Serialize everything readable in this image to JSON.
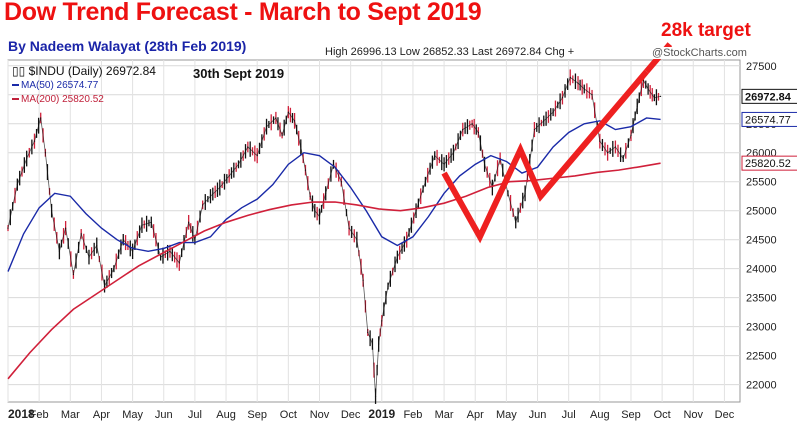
{
  "overlay": {
    "headline": "Dow Trend Forecast - March to Sept 2019",
    "byline": "By Nadeem Walayat  (28th Feb 2019)",
    "target_label": "28k target",
    "date_label": "30th Sept 2019",
    "stats_text": "High 26996.13  Low 26852.33  Last 26972.84  Chg +",
    "watermark": "@StockCharts.com"
  },
  "legend": {
    "symbol": "$INDU (Daily) 26972.84",
    "ma50": "MA(50) 26574.77",
    "ma200": "MA(200) 25820.52"
  },
  "colors": {
    "up_bar": "#111111",
    "down_bar": "#d0203a",
    "ma50": "#1a2aa8",
    "ma200": "#d0203a",
    "forecast": "#ee2020",
    "headline": "#ee1111",
    "byline": "#1a24a8"
  },
  "chart_data": {
    "type": "line",
    "title": "$INDU (Daily)",
    "ylabel": "",
    "xlabel": "",
    "ylim": [
      21700,
      27600
    ],
    "y_ticks": [
      22000,
      22500,
      23000,
      23500,
      24000,
      24500,
      25000,
      25500,
      26000,
      26500,
      27000,
      27500
    ],
    "x_ticks": [
      "2018",
      "Feb",
      "Mar",
      "Apr",
      "May",
      "Jun",
      "Jul",
      "Aug",
      "Sep",
      "Oct",
      "Nov",
      "Dec",
      "2019",
      "Feb",
      "Mar",
      "Apr",
      "May",
      "Jun",
      "Jul",
      "Aug",
      "Sep",
      "Oct",
      "Nov",
      "Dec"
    ],
    "price_badges": [
      {
        "label": "26972.84",
        "value": 26972.84,
        "series": "price"
      },
      {
        "label": "26574.77",
        "value": 26574.77,
        "series": "ma50"
      },
      {
        "label": "25820.52",
        "value": 25820.52,
        "series": "ma200"
      }
    ],
    "series": [
      {
        "name": "$INDU",
        "style": "price",
        "x": [
          0,
          0.3,
          0.6,
          0.85,
          1.05,
          1.2,
          1.4,
          1.65,
          1.85,
          2.1,
          2.35,
          2.6,
          2.85,
          3.1,
          3.4,
          3.7,
          4.0,
          4.3,
          4.6,
          4.9,
          5.2,
          5.5,
          5.8,
          6.0,
          6.25,
          6.5,
          6.8,
          7.1,
          7.4,
          7.7,
          8.0,
          8.3,
          8.6,
          8.8,
          9.0,
          9.2,
          9.4,
          9.55,
          9.7,
          9.85,
          10.0,
          10.2,
          10.45,
          10.7,
          10.95,
          11.2,
          11.4,
          11.55,
          11.7,
          11.8,
          11.9,
          12.0,
          12.2,
          12.5,
          12.8,
          13.1,
          13.4,
          13.7,
          14.0,
          14.3,
          14.6,
          14.9,
          15.1,
          15.3,
          15.55,
          15.8,
          16.05,
          16.3,
          16.6,
          16.9,
          17.2,
          17.5,
          17.8,
          18.05,
          18.3,
          18.5,
          18.75,
          19.0,
          19.25,
          19.5,
          19.75,
          20.0,
          20.2,
          20.4,
          20.55,
          20.75,
          20.95
        ],
        "values": [
          24700,
          25450,
          25900,
          26200,
          26600,
          26000,
          25000,
          24300,
          24700,
          23900,
          24600,
          24200,
          24400,
          23700,
          24000,
          24500,
          24300,
          24750,
          24800,
          24200,
          24300,
          24100,
          24800,
          24500,
          25100,
          25250,
          25400,
          25600,
          25800,
          26100,
          25950,
          26450,
          26600,
          26300,
          26700,
          26550,
          26100,
          25700,
          25250,
          25000,
          24900,
          25300,
          25800,
          25500,
          24700,
          24500,
          23800,
          22900,
          22700,
          21800,
          22700,
          23100,
          23700,
          24200,
          24500,
          25000,
          25500,
          25950,
          25800,
          26000,
          26400,
          26500,
          26350,
          25800,
          25400,
          25900,
          25300,
          24800,
          25300,
          26400,
          26550,
          26700,
          26950,
          27300,
          27200,
          27100,
          27000,
          26200,
          26000,
          26100,
          25900,
          26300,
          26800,
          27250,
          27100,
          26950,
          26972.84
        ]
      },
      {
        "name": "MA(50)",
        "style": "ma50",
        "x": [
          0,
          0.5,
          1.0,
          1.5,
          2.0,
          2.5,
          3.0,
          3.5,
          4.0,
          4.5,
          5.0,
          5.5,
          6.0,
          6.5,
          7.0,
          7.5,
          8.0,
          8.5,
          9.0,
          9.5,
          10.0,
          10.5,
          11.0,
          11.5,
          12.0,
          12.5,
          13.0,
          13.5,
          14.0,
          14.5,
          15.0,
          15.5,
          16.0,
          16.5,
          17.0,
          17.5,
          18.0,
          18.5,
          19.0,
          19.5,
          20.0,
          20.5,
          20.95
        ],
        "values": [
          23950,
          24600,
          25050,
          25300,
          25250,
          24950,
          24700,
          24500,
          24350,
          24300,
          24350,
          24450,
          24450,
          24550,
          24850,
          25050,
          25200,
          25450,
          25800,
          26000,
          25950,
          25750,
          25400,
          25000,
          24550,
          24400,
          24550,
          24900,
          25300,
          25600,
          25800,
          25950,
          25850,
          25650,
          25750,
          26100,
          26350,
          26500,
          26550,
          26400,
          26450,
          26600,
          26574.77
        ]
      },
      {
        "name": "MA(200)",
        "style": "ma200",
        "x": [
          0,
          0.7,
          1.4,
          2.1,
          2.8,
          3.5,
          4.2,
          4.9,
          5.6,
          6.3,
          7.0,
          7.7,
          8.4,
          9.1,
          9.8,
          10.5,
          11.2,
          11.9,
          12.6,
          13.3,
          14.0,
          14.7,
          15.4,
          16.1,
          16.8,
          17.5,
          18.2,
          18.9,
          19.6,
          20.3,
          20.95
        ],
        "values": [
          22100,
          22550,
          22950,
          23300,
          23550,
          23800,
          24050,
          24250,
          24450,
          24650,
          24800,
          24920,
          25020,
          25100,
          25150,
          25150,
          25100,
          25030,
          25000,
          25050,
          25130,
          25250,
          25400,
          25500,
          25520,
          25560,
          25600,
          25660,
          25700,
          25760,
          25820.52
        ]
      },
      {
        "name": "Forecast",
        "style": "forecast",
        "x": [
          14.0,
          15.15,
          16.45,
          17.1,
          20.5
        ],
        "values": [
          25650,
          24550,
          26050,
          25250,
          27400
        ]
      }
    ]
  }
}
